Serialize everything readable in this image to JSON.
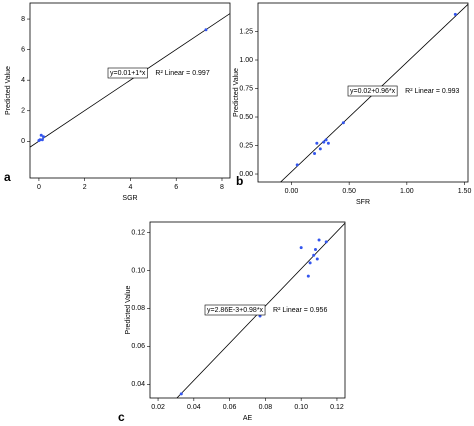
{
  "chart_data": [
    {
      "type": "scatter",
      "panel": "a",
      "x_label": "SGR",
      "y_label": "Predicted Value",
      "x": [
        0,
        0.05,
        0.1,
        0.15,
        0.2,
        7.3
      ],
      "values": [
        0.05,
        0.1,
        0.4,
        0.1,
        0.3,
        7.3
      ],
      "color": "#3355ee",
      "xlim": [
        -0.39,
        8.35
      ],
      "ylim": [
        -2.4,
        9.05
      ],
      "xticks": [
        0,
        2,
        4,
        6,
        8
      ],
      "yticks": [
        0,
        2,
        4,
        6,
        8
      ],
      "fit_intercept": 0.01,
      "fit_slope": 1,
      "fit_label": "y=0.01+1*x",
      "r2_label": "R² Linear = 0.997"
    },
    {
      "type": "scatter",
      "panel": "b",
      "x_label": "SFR",
      "y_label": "Predicted Value",
      "x": [
        0.05,
        0.2,
        0.22,
        0.25,
        0.28,
        0.3,
        0.32,
        0.45,
        1.42
      ],
      "values": [
        0.08,
        0.18,
        0.27,
        0.22,
        0.28,
        0.3,
        0.27,
        0.45,
        1.4
      ],
      "color": "#3355ee",
      "xlim": [
        -0.29,
        1.53
      ],
      "ylim": [
        -0.07,
        1.5
      ],
      "xticks": [
        {
          "value": 0,
          "label": "0.00"
        },
        {
          "value": 0.5,
          "label": "0.50"
        },
        {
          "value": 1,
          "label": "1.00"
        },
        {
          "value": 1.5,
          "label": "1.50"
        }
      ],
      "yticks": [
        {
          "value": 0,
          "label": "0.00"
        },
        0.25,
        {
          "value": 0.5,
          "label": "0.50"
        },
        0.75,
        {
          "value": 1,
          "label": "1.00"
        },
        1.25
      ],
      "fit_intercept": 0.02,
      "fit_slope": 0.96,
      "fit_label": "y=0.02+0.96*x",
      "r2_label": "R² Linear = 0.993"
    },
    {
      "type": "scatter",
      "panel": "c",
      "x_label": "AE",
      "y_label": "Predicted Value",
      "x": [
        0.033,
        0.077,
        0.1,
        0.104,
        0.105,
        0.107,
        0.108,
        0.109,
        0.11,
        0.114
      ],
      "values": [
        0.035,
        0.076,
        0.112,
        0.097,
        0.104,
        0.108,
        0.111,
        0.106,
        0.116,
        0.115
      ],
      "color": "#3355ee",
      "xlim": [
        0.0155,
        0.1245
      ],
      "ylim": [
        0.0328,
        0.1255
      ],
      "xticks": [
        0.02,
        0.04,
        0.06,
        0.08,
        {
          "value": 0.1,
          "label": "0.10"
        },
        0.12
      ],
      "yticks": [
        0.04,
        0.06,
        0.08,
        {
          "value": 0.1,
          "label": "0.10"
        },
        0.12
      ],
      "fit_intercept": 0.00286,
      "fit_slope": 0.98,
      "fit_label": "y=2.86E-3+0.98*x",
      "r2_label": "R² Linear = 0.956"
    }
  ]
}
